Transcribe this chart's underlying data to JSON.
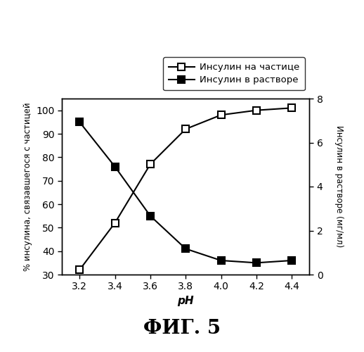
{
  "ph_values": [
    3.2,
    3.4,
    3.6,
    3.8,
    4.0,
    4.2,
    4.4
  ],
  "insulin_on_particle": [
    32,
    52,
    77,
    92,
    98,
    100,
    101
  ],
  "insulin_in_solution_pct": [
    95,
    76,
    55,
    41,
    36,
    35,
    36
  ],
  "line1_label": "Инсулин на частице",
  "line2_label": "Инсулин в растворе",
  "xlabel": "pH",
  "ylabel_left": "% инсулина, связавшегося с частицей",
  "ylabel_right": "Инсулин в растворе (мг/мл)",
  "ylim_left": [
    30,
    105
  ],
  "ylim_right": [
    0,
    8
  ],
  "yticks_left": [
    30,
    40,
    50,
    60,
    70,
    80,
    90,
    100
  ],
  "yticks_right": [
    0,
    2,
    4,
    6,
    8
  ],
  "fig_title": "ФИГ. 5",
  "bg_color": "#ffffff",
  "line_color": "#000000"
}
